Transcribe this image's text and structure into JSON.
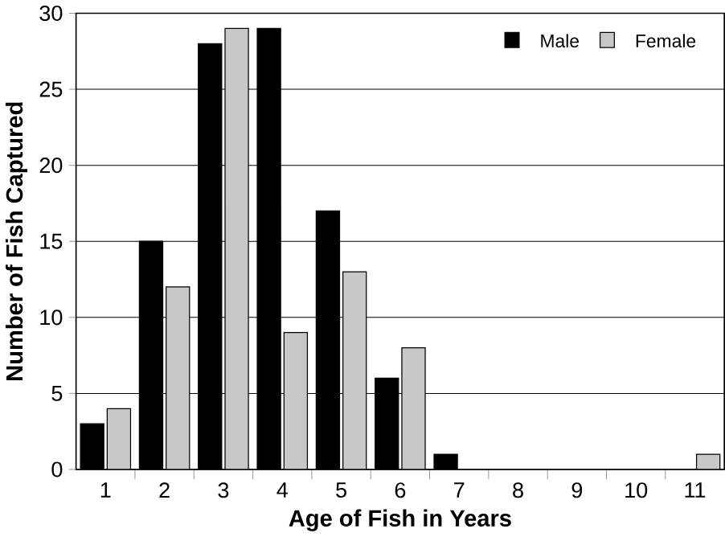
{
  "chart_data": {
    "type": "bar",
    "xlabel": "Age of Fish in Years",
    "ylabel": "Number of Fish Captured",
    "categories": [
      "1",
      "2",
      "3",
      "4",
      "5",
      "6",
      "7",
      "8",
      "9",
      "10",
      "11"
    ],
    "series": [
      {
        "name": "Male",
        "color": "#000000",
        "values": [
          3,
          15,
          28,
          29,
          17,
          6,
          1,
          null,
          null,
          null,
          null
        ]
      },
      {
        "name": "Female",
        "color": "#c8c8c8",
        "values": [
          4,
          12,
          29,
          9,
          13,
          8,
          null,
          null,
          null,
          null,
          1
        ]
      }
    ],
    "ylim": [
      0,
      30
    ],
    "yticks": [
      0,
      5,
      10,
      15,
      20,
      25,
      30
    ],
    "grid": "y",
    "legend": "top right"
  }
}
